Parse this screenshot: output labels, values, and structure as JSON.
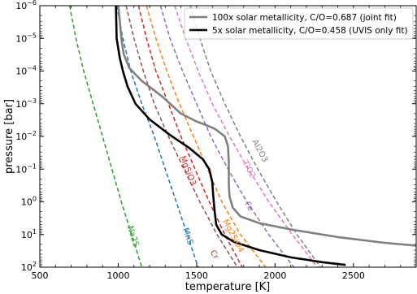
{
  "chart_data": {
    "type": "line",
    "xlabel": "temperature [K]",
    "ylabel": "pressure [bar]",
    "xlim": [
      500,
      2900
    ],
    "ylim": [
      100,
      1e-06
    ],
    "y_scale": "log",
    "y_inverted": true,
    "x_ticks": [
      500,
      1000,
      1500,
      2000,
      2500
    ],
    "x_tick_labels": [
      "500",
      "1000",
      "1500",
      "2000",
      "2500"
    ],
    "y_tick_exponents": [
      "-6",
      "-5",
      "-4",
      "-3",
      "-2",
      "-1",
      "0",
      "1",
      "2"
    ],
    "legend": {
      "placement": "top-right"
    },
    "series": [
      {
        "name": "100x solar metallicity, C/O=0.687 (joint fit)",
        "color": "#808080",
        "style": "solid",
        "points": [
          [
            1000,
            1e-06
          ],
          [
            1010,
            3e-06
          ],
          [
            1020,
            1e-05
          ],
          [
            1035,
            3e-05
          ],
          [
            1070,
            8e-05
          ],
          [
            1150,
            0.0002
          ],
          [
            1280,
            0.0006
          ],
          [
            1400,
            0.002
          ],
          [
            1500,
            0.0035
          ],
          [
            1560,
            0.0045
          ],
          [
            1620,
            0.006
          ],
          [
            1680,
            0.01
          ],
          [
            1700,
            0.02
          ],
          [
            1705,
            0.06
          ],
          [
            1705,
            0.3
          ],
          [
            1710,
            0.7
          ],
          [
            1730,
            1.5
          ],
          [
            1780,
            2.8
          ],
          [
            1900,
            4.5
          ],
          [
            2100,
            7
          ],
          [
            2400,
            12
          ],
          [
            2700,
            18
          ],
          [
            2900,
            22
          ]
        ]
      },
      {
        "name": "5x solar metallicity, C/O=0.458 (UVIS only fit)",
        "color": "#000000",
        "style": "solid",
        "points": [
          [
            985,
            1e-06
          ],
          [
            990,
            1e-05
          ],
          [
            1010,
            4e-05
          ],
          [
            1030,
            0.0001
          ],
          [
            1060,
            0.0003
          ],
          [
            1110,
            0.001
          ],
          [
            1200,
            0.003
          ],
          [
            1330,
            0.009
          ],
          [
            1450,
            0.022
          ],
          [
            1540,
            0.05
          ],
          [
            1580,
            0.1
          ],
          [
            1600,
            0.25
          ],
          [
            1605,
            0.6
          ],
          [
            1615,
            2
          ],
          [
            1625,
            5
          ],
          [
            1660,
            10
          ],
          [
            1740,
            17
          ],
          [
            1900,
            30
          ],
          [
            2100,
            50
          ],
          [
            2300,
            70
          ],
          [
            2450,
            85
          ]
        ]
      },
      {
        "name": "Na2S",
        "color": "#2ca02c",
        "style": "dashed",
        "points": [
          [
            690,
            1e-06
          ],
          [
            730,
            1e-05
          ],
          [
            780,
            0.0001
          ],
          [
            840,
            0.001
          ],
          [
            900,
            0.01
          ],
          [
            960,
            0.1
          ],
          [
            1020,
            1
          ],
          [
            1085,
            10
          ],
          [
            1150,
            100
          ]
        ]
      },
      {
        "name": "MnS",
        "color": "#1f77b4",
        "style": "dashed",
        "points": [
          [
            990,
            1e-06
          ],
          [
            1030,
            1e-05
          ],
          [
            1080,
            0.0001
          ],
          [
            1150,
            0.001
          ],
          [
            1230,
            0.01
          ],
          [
            1300,
            0.1
          ],
          [
            1370,
            1
          ],
          [
            1440,
            10
          ],
          [
            1510,
            100
          ]
        ]
      },
      {
        "name": "Cr",
        "color": "#8c564b",
        "style": "dashed",
        "points": [
          [
            1050,
            1e-06
          ],
          [
            1100,
            1e-05
          ],
          [
            1160,
            0.0001
          ],
          [
            1230,
            0.001
          ],
          [
            1320,
            0.01
          ],
          [
            1420,
            0.1
          ],
          [
            1520,
            1
          ],
          [
            1630,
            10
          ],
          [
            1760,
            100
          ]
        ]
      },
      {
        "name": "MgSiO3",
        "color": "#d62728",
        "style": "dashed",
        "points": [
          [
            1130,
            1e-06
          ],
          [
            1180,
            1e-05
          ],
          [
            1240,
            0.0001
          ],
          [
            1320,
            0.001
          ],
          [
            1400,
            0.01
          ],
          [
            1490,
            0.1
          ],
          [
            1580,
            1
          ],
          [
            1680,
            10
          ],
          [
            1790,
            100
          ]
        ]
      },
      {
        "name": "Mg2SiO4",
        "color": "#ff7f0e",
        "style": "dashed",
        "points": [
          [
            1180,
            1e-06
          ],
          [
            1240,
            1e-05
          ],
          [
            1310,
            0.0001
          ],
          [
            1390,
            0.001
          ],
          [
            1480,
            0.01
          ],
          [
            1570,
            0.1
          ],
          [
            1660,
            1
          ],
          [
            1780,
            10
          ],
          [
            1940,
            100
          ]
        ]
      },
      {
        "name": "Fe",
        "color": "#9467bd",
        "style": "dashed",
        "points": [
          [
            1270,
            1e-06
          ],
          [
            1330,
            1e-05
          ],
          [
            1410,
            0.0001
          ],
          [
            1500,
            0.001
          ],
          [
            1590,
            0.01
          ],
          [
            1700,
            0.1
          ],
          [
            1820,
            1
          ],
          [
            1960,
            10
          ],
          [
            2120,
            100
          ]
        ]
      },
      {
        "name": "TiO2",
        "color": "#e377c2",
        "style": "dashed",
        "points": [
          [
            1360,
            1e-06
          ],
          [
            1430,
            1e-05
          ],
          [
            1510,
            0.0001
          ],
          [
            1600,
            0.001
          ],
          [
            1710,
            0.01
          ],
          [
            1830,
            0.1
          ],
          [
            1960,
            1
          ],
          [
            2110,
            10
          ],
          [
            2270,
            100
          ]
        ]
      },
      {
        "name": "Al2O3",
        "color": "#7f7f7f",
        "style": "dashed",
        "points": [
          [
            1460,
            1e-06
          ],
          [
            1520,
            1e-05
          ],
          [
            1590,
            0.0001
          ],
          [
            1680,
            0.001
          ],
          [
            1780,
            0.01
          ],
          [
            1890,
            0.1
          ],
          [
            2010,
            1
          ],
          [
            2140,
            10
          ],
          [
            2290,
            100
          ]
        ]
      }
    ],
    "annotations": [
      {
        "text": "Na2S",
        "x": 1080,
        "y": 12,
        "color": "#2ca02c",
        "angle": 72
      },
      {
        "text": "MnS",
        "x": 1430,
        "y": 12,
        "color": "#1f77b4",
        "angle": 72
      },
      {
        "text": "Cr",
        "x": 1600,
        "y": 45,
        "color": "#8c564b",
        "angle": 60
      },
      {
        "text": "MgSiO3",
        "x": 1430,
        "y": 0.12,
        "color": "#d62728",
        "angle": 68
      },
      {
        "text": "Mg2SiO4",
        "x": 1720,
        "y": 12,
        "color": "#ff7f0e",
        "angle": 62
      },
      {
        "text": "Fe",
        "x": 1820,
        "y": 1.5,
        "color": "#9467bd",
        "angle": 60
      },
      {
        "text": "TiO2",
        "x": 1820,
        "y": 0.11,
        "color": "#e377c2",
        "angle": 62
      },
      {
        "text": "Al2O3",
        "x": 1890,
        "y": 0.03,
        "color": "#7f7f7f",
        "angle": 62
      }
    ]
  }
}
